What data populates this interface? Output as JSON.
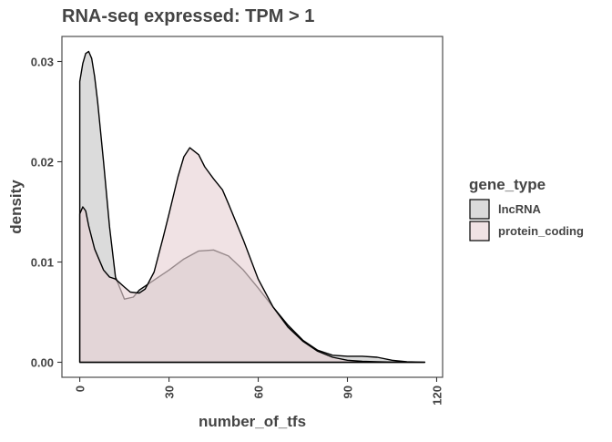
{
  "chart_data": {
    "type": "area",
    "title": "RNA-seq expressed: TPM > 1",
    "xlabel": "number_of_tfs",
    "ylabel": "density",
    "xlim": [
      -6,
      122
    ],
    "ylim": [
      -0.0015,
      0.0325
    ],
    "x_ticks": [
      0,
      30,
      60,
      90,
      120
    ],
    "x_tick_labels": [
      "0",
      "30",
      "60",
      "90",
      "120"
    ],
    "y_ticks": [
      0.0,
      0.01,
      0.02,
      0.03
    ],
    "y_tick_labels": [
      "0.00",
      "0.01",
      "0.02",
      "0.03"
    ],
    "grid": false,
    "legend": {
      "title": "gene_type",
      "position": "right",
      "entries": [
        "lncRNA",
        "protein_coding"
      ]
    },
    "series": [
      {
        "name": "lncRNA",
        "color": "#c8c8c8",
        "x": [
          0,
          1,
          2,
          3,
          4,
          5,
          6,
          8,
          10,
          12,
          15,
          18,
          20,
          25,
          30,
          35,
          40,
          45,
          50,
          55,
          60,
          65,
          70,
          75,
          80,
          85,
          90,
          95,
          100,
          105,
          110,
          116
        ],
        "values": [
          0.028,
          0.0298,
          0.0308,
          0.031,
          0.0303,
          0.0285,
          0.026,
          0.02,
          0.0135,
          0.0085,
          0.0063,
          0.0065,
          0.0072,
          0.0082,
          0.0092,
          0.0103,
          0.0111,
          0.0112,
          0.0106,
          0.0092,
          0.0074,
          0.0055,
          0.0037,
          0.0022,
          0.0012,
          0.0007,
          0.0006,
          0.0006,
          0.0005,
          0.0002,
          5e-05,
          0.0
        ]
      },
      {
        "name": "protein_coding",
        "color": "#e8d3d6",
        "x": [
          0,
          1,
          2,
          3,
          5,
          8,
          10,
          12,
          15,
          17,
          20,
          22,
          25,
          28,
          30,
          33,
          35,
          37,
          40,
          42,
          45,
          48,
          50,
          55,
          60,
          65,
          70,
          75,
          80,
          85,
          90,
          95,
          100,
          105,
          110,
          116
        ],
        "values": [
          0.0148,
          0.0155,
          0.0151,
          0.0136,
          0.0113,
          0.0092,
          0.0085,
          0.0083,
          0.0075,
          0.007,
          0.0069,
          0.0073,
          0.009,
          0.0124,
          0.0148,
          0.0185,
          0.0205,
          0.0214,
          0.0207,
          0.0195,
          0.0183,
          0.0172,
          0.0158,
          0.0122,
          0.0083,
          0.0055,
          0.0035,
          0.0021,
          0.0011,
          0.0005,
          0.0002,
          0.0001,
          5e-05,
          2e-05,
          0.0,
          0.0
        ]
      }
    ]
  }
}
